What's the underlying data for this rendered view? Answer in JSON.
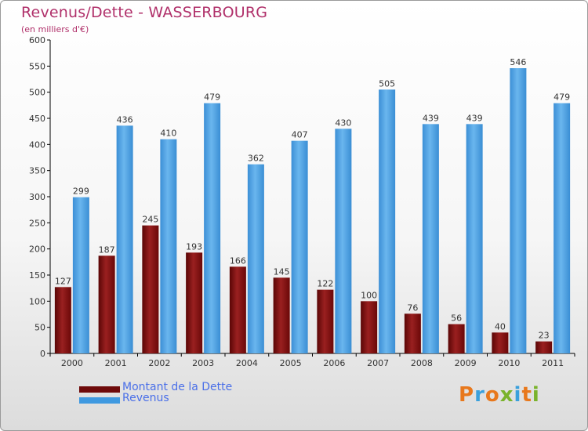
{
  "chart_data": {
    "type": "bar",
    "title": "Revenus/Dette - WASSERBOURG",
    "subtitle": "(en milliers d'€)",
    "xlabel": "",
    "ylabel": "",
    "categories": [
      "2000",
      "2001",
      "2002",
      "2003",
      "2004",
      "2005",
      "2006",
      "2007",
      "2008",
      "2009",
      "2010",
      "2011"
    ],
    "series": [
      {
        "name": "Montant de la Dette",
        "color": "#7a0c0c",
        "values": [
          127,
          187,
          245,
          193,
          166,
          145,
          122,
          100,
          76,
          56,
          40,
          23
        ]
      },
      {
        "name": "Revenus",
        "color": "#4aa3e6",
        "values": [
          299,
          436,
          410,
          479,
          362,
          407,
          430,
          505,
          439,
          439,
          546,
          479
        ]
      }
    ],
    "ylim": [
      0,
      600
    ],
    "yticks": [
      0,
      50,
      100,
      150,
      200,
      250,
      300,
      350,
      400,
      450,
      500,
      550,
      600
    ],
    "grid": false,
    "legend_position": "bottom-left"
  },
  "logo": {
    "text": "Proxiti"
  }
}
